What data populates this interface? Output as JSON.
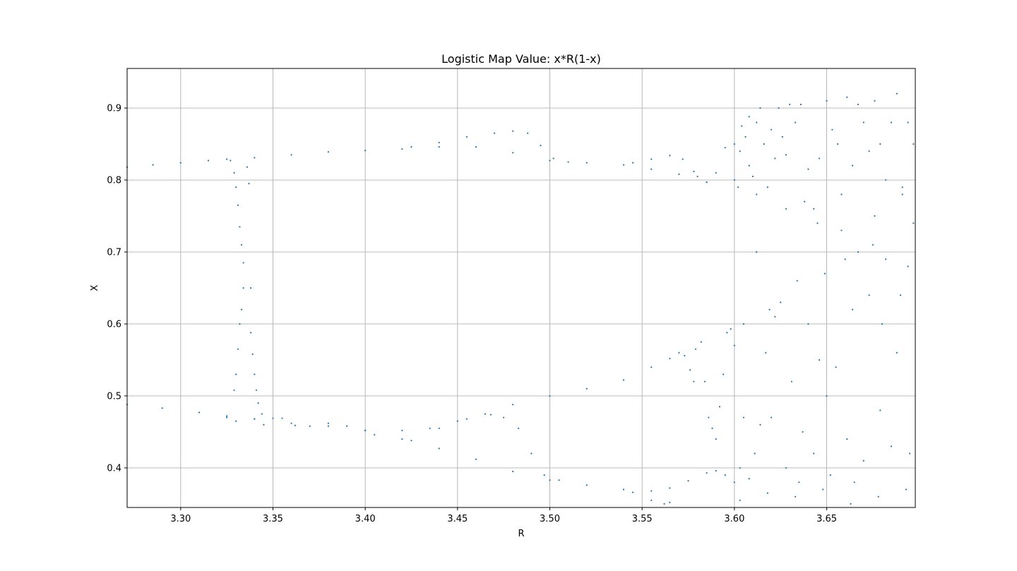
{
  "chart_data": {
    "type": "scatter",
    "title": "Logistic Map Value: x*R(1-x)",
    "xlabel": "R",
    "ylabel": "X",
    "xlim": [
      3.271,
      3.698
    ],
    "ylim": [
      0.345,
      0.955
    ],
    "xticks": [
      3.3,
      3.35,
      3.4,
      3.45,
      3.5,
      3.55,
      3.6,
      3.65
    ],
    "xtick_labels": [
      "3.30",
      "3.35",
      "3.40",
      "3.45",
      "3.50",
      "3.55",
      "3.60",
      "3.65"
    ],
    "yticks": [
      0.4,
      0.5,
      0.6,
      0.7,
      0.8,
      0.9
    ],
    "ytick_labels": [
      "0.4",
      "0.5",
      "0.6",
      "0.7",
      "0.8",
      "0.9"
    ],
    "grid": true,
    "marker_color": "#1f77b4",
    "series": [
      {
        "points": [
          [
            3.271,
            0.818
          ],
          [
            3.285,
            0.821
          ],
          [
            3.3,
            0.824
          ],
          [
            3.315,
            0.827
          ],
          [
            3.325,
            0.829
          ],
          [
            3.34,
            0.831
          ],
          [
            3.36,
            0.835
          ],
          [
            3.38,
            0.839
          ],
          [
            3.4,
            0.841
          ],
          [
            3.42,
            0.843
          ],
          [
            3.44,
            0.846
          ],
          [
            3.46,
            0.846
          ],
          [
            3.48,
            0.838
          ],
          [
            3.5,
            0.827
          ],
          [
            3.52,
            0.824
          ],
          [
            3.54,
            0.821
          ],
          [
            3.555,
            0.815
          ],
          [
            3.57,
            0.808
          ],
          [
            3.58,
            0.805
          ],
          [
            3.585,
            0.797
          ],
          [
            3.425,
            0.846
          ],
          [
            3.44,
            0.852
          ],
          [
            3.455,
            0.86
          ],
          [
            3.47,
            0.865
          ],
          [
            3.48,
            0.868
          ],
          [
            3.488,
            0.865
          ],
          [
            3.495,
            0.848
          ],
          [
            3.502,
            0.83
          ],
          [
            3.51,
            0.825
          ],
          [
            3.545,
            0.824
          ],
          [
            3.555,
            0.829
          ],
          [
            3.565,
            0.834
          ],
          [
            3.572,
            0.829
          ],
          [
            3.578,
            0.812
          ],
          [
            3.585,
            0.797
          ],
          [
            3.59,
            0.81
          ],
          [
            3.595,
            0.845
          ],
          [
            3.6,
            0.85
          ],
          [
            3.604,
            0.875
          ],
          [
            3.608,
            0.888
          ],
          [
            3.612,
            0.88
          ],
          [
            3.271,
            0.488
          ],
          [
            3.29,
            0.483
          ],
          [
            3.31,
            0.477
          ],
          [
            3.325,
            0.472
          ],
          [
            3.34,
            0.468
          ],
          [
            3.36,
            0.462
          ],
          [
            3.38,
            0.458
          ],
          [
            3.4,
            0.452
          ],
          [
            3.42,
            0.44
          ],
          [
            3.44,
            0.427
          ],
          [
            3.46,
            0.412
          ],
          [
            3.48,
            0.395
          ],
          [
            3.5,
            0.383
          ],
          [
            3.52,
            0.376
          ],
          [
            3.54,
            0.37
          ],
          [
            3.555,
            0.368
          ],
          [
            3.565,
            0.372
          ],
          [
            3.575,
            0.382
          ],
          [
            3.585,
            0.393
          ],
          [
            3.59,
            0.396
          ],
          [
            3.595,
            0.39
          ],
          [
            3.6,
            0.38
          ],
          [
            3.603,
            0.355
          ],
          [
            3.4,
            0.452
          ],
          [
            3.42,
            0.452
          ],
          [
            3.435,
            0.455
          ],
          [
            3.45,
            0.465
          ],
          [
            3.465,
            0.475
          ],
          [
            3.48,
            0.488
          ],
          [
            3.5,
            0.5
          ],
          [
            3.52,
            0.51
          ],
          [
            3.54,
            0.522
          ],
          [
            3.555,
            0.54
          ],
          [
            3.565,
            0.552
          ],
          [
            3.57,
            0.56
          ],
          [
            3.573,
            0.556
          ],
          [
            3.578,
            0.52
          ],
          [
            3.405,
            0.446
          ],
          [
            3.425,
            0.438
          ],
          [
            3.44,
            0.455
          ],
          [
            3.455,
            0.468
          ],
          [
            3.468,
            0.474
          ],
          [
            3.475,
            0.47
          ],
          [
            3.483,
            0.455
          ],
          [
            3.49,
            0.42
          ],
          [
            3.497,
            0.39
          ],
          [
            3.505,
            0.383
          ],
          [
            3.325,
            0.47
          ],
          [
            3.33,
            0.465
          ],
          [
            3.34,
            0.468
          ],
          [
            3.345,
            0.46
          ],
          [
            3.35,
            0.469
          ],
          [
            3.355,
            0.469
          ],
          [
            3.362,
            0.459
          ],
          [
            3.37,
            0.458
          ],
          [
            3.38,
            0.462
          ],
          [
            3.39,
            0.458
          ],
          [
            3.545,
            0.366
          ],
          [
            3.555,
            0.355
          ],
          [
            3.562,
            0.35
          ],
          [
            3.565,
            0.352
          ],
          [
            3.327,
            0.827
          ],
          [
            3.329,
            0.81
          ],
          [
            3.33,
            0.79
          ],
          [
            3.331,
            0.765
          ],
          [
            3.332,
            0.735
          ],
          [
            3.333,
            0.71
          ],
          [
            3.334,
            0.685
          ],
          [
            3.334,
            0.65
          ],
          [
            3.333,
            0.62
          ],
          [
            3.332,
            0.6
          ],
          [
            3.331,
            0.565
          ],
          [
            3.33,
            0.53
          ],
          [
            3.329,
            0.508
          ],
          [
            3.337,
            0.795
          ],
          [
            3.338,
            0.65
          ],
          [
            3.338,
            0.588
          ],
          [
            3.339,
            0.558
          ],
          [
            3.34,
            0.53
          ],
          [
            3.341,
            0.508
          ],
          [
            3.342,
            0.49
          ],
          [
            3.344,
            0.475
          ],
          [
            3.336,
            0.818
          ],
          [
            3.576,
            0.536
          ],
          [
            3.579,
            0.565
          ],
          [
            3.582,
            0.575
          ],
          [
            3.584,
            0.52
          ],
          [
            3.586,
            0.47
          ],
          [
            3.588,
            0.455
          ],
          [
            3.59,
            0.44
          ],
          [
            3.592,
            0.485
          ],
          [
            3.594,
            0.53
          ],
          [
            3.596,
            0.588
          ],
          [
            3.598,
            0.593
          ],
          [
            3.6,
            0.57
          ],
          [
            3.6,
            0.8
          ],
          [
            3.602,
            0.79
          ],
          [
            3.603,
            0.84
          ],
          [
            3.606,
            0.86
          ],
          [
            3.608,
            0.82
          ],
          [
            3.61,
            0.805
          ],
          [
            3.612,
            0.78
          ],
          [
            3.614,
            0.9
          ],
          [
            3.616,
            0.85
          ],
          [
            3.618,
            0.79
          ],
          [
            3.62,
            0.87
          ],
          [
            3.622,
            0.83
          ],
          [
            3.624,
            0.9
          ],
          [
            3.626,
            0.86
          ],
          [
            3.628,
            0.835
          ],
          [
            3.63,
            0.905
          ],
          [
            3.633,
            0.88
          ],
          [
            3.636,
            0.905
          ],
          [
            3.638,
            0.77
          ],
          [
            3.64,
            0.815
          ],
          [
            3.643,
            0.76
          ],
          [
            3.646,
            0.83
          ],
          [
            3.65,
            0.91
          ],
          [
            3.653,
            0.87
          ],
          [
            3.656,
            0.85
          ],
          [
            3.658,
            0.78
          ],
          [
            3.661,
            0.915
          ],
          [
            3.664,
            0.82
          ],
          [
            3.667,
            0.905
          ],
          [
            3.67,
            0.88
          ],
          [
            3.673,
            0.84
          ],
          [
            3.676,
            0.91
          ],
          [
            3.679,
            0.85
          ],
          [
            3.682,
            0.8
          ],
          [
            3.685,
            0.88
          ],
          [
            3.688,
            0.92
          ],
          [
            3.691,
            0.79
          ],
          [
            3.694,
            0.88
          ],
          [
            3.697,
            0.85
          ],
          [
            3.605,
            0.47
          ],
          [
            3.608,
            0.385
          ],
          [
            3.611,
            0.42
          ],
          [
            3.614,
            0.46
          ],
          [
            3.617,
            0.56
          ],
          [
            3.619,
            0.62
          ],
          [
            3.622,
            0.61
          ],
          [
            3.625,
            0.63
          ],
          [
            3.628,
            0.4
          ],
          [
            3.631,
            0.52
          ],
          [
            3.634,
            0.66
          ],
          [
            3.637,
            0.45
          ],
          [
            3.64,
            0.6
          ],
          [
            3.643,
            0.42
          ],
          [
            3.646,
            0.55
          ],
          [
            3.649,
            0.67
          ],
          [
            3.652,
            0.39
          ],
          [
            3.655,
            0.54
          ],
          [
            3.658,
            0.73
          ],
          [
            3.661,
            0.44
          ],
          [
            3.664,
            0.62
          ],
          [
            3.667,
            0.7
          ],
          [
            3.67,
            0.41
          ],
          [
            3.673,
            0.64
          ],
          [
            3.676,
            0.75
          ],
          [
            3.679,
            0.48
          ],
          [
            3.682,
            0.69
          ],
          [
            3.685,
            0.43
          ],
          [
            3.688,
            0.56
          ],
          [
            3.691,
            0.78
          ],
          [
            3.694,
            0.68
          ],
          [
            3.697,
            0.74
          ],
          [
            3.605,
            0.6
          ],
          [
            3.62,
            0.47
          ],
          [
            3.635,
            0.38
          ],
          [
            3.65,
            0.5
          ],
          [
            3.665,
            0.38
          ],
          [
            3.68,
            0.6
          ],
          [
            3.695,
            0.42
          ],
          [
            3.612,
            0.7
          ],
          [
            3.628,
            0.76
          ],
          [
            3.645,
            0.74
          ],
          [
            3.66,
            0.69
          ],
          [
            3.675,
            0.71
          ],
          [
            3.69,
            0.64
          ],
          [
            3.603,
            0.4
          ],
          [
            3.618,
            0.365
          ],
          [
            3.633,
            0.36
          ],
          [
            3.648,
            0.37
          ],
          [
            3.663,
            0.35
          ],
          [
            3.678,
            0.36
          ],
          [
            3.693,
            0.37
          ]
        ]
      }
    ]
  }
}
